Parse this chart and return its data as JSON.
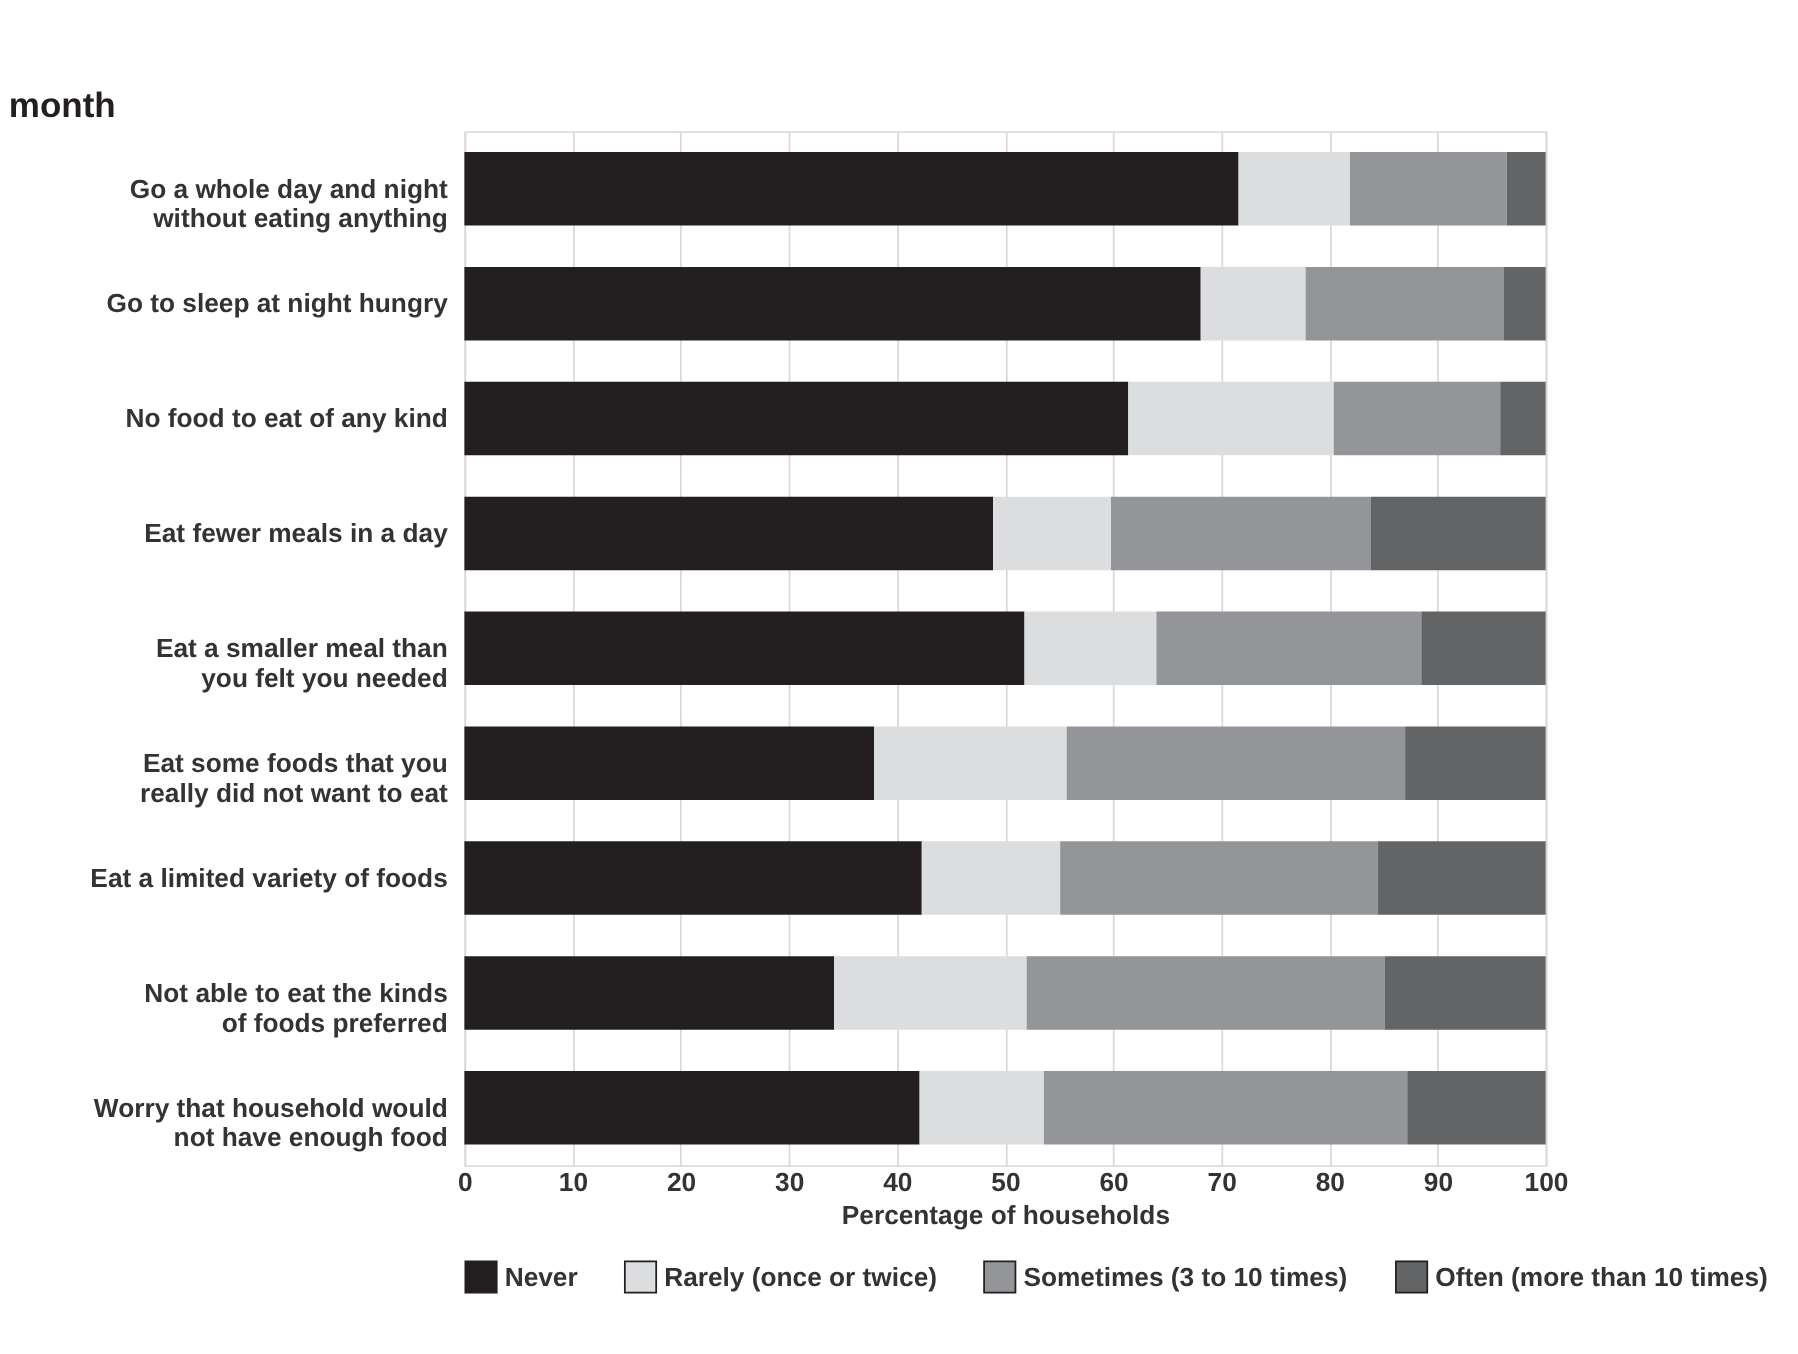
{
  "chart_data": {
    "type": "bar",
    "orientation": "horizontal",
    "stacked": true,
    "title": "month",
    "categories": [
      "Go a whole day and night\nwithout eating anything",
      "Go to sleep at night hungry",
      "No food to eat of any kind",
      "Eat fewer meals in a day",
      "Eat a smaller meal than\nyou felt you needed",
      "Eat some foods that you\nreally did not want to eat",
      "Eat a limited variety of foods",
      "Not able to eat the kinds\nof foods preferred",
      "Worry that household would\nnot have enough food"
    ],
    "series": [
      {
        "name": "Never",
        "color": "#231f20",
        "values": [
          71.6,
          68.1,
          61.4,
          48.9,
          51.8,
          37.9,
          42.3,
          34.2,
          42.1
        ]
      },
      {
        "name": "Rarely (once or twice)",
        "color": "#dcdddf",
        "values": [
          10.3,
          9.7,
          19.0,
          10.9,
          12.2,
          17.8,
          12.8,
          17.8,
          11.5
        ]
      },
      {
        "name": "Sometimes (3 to 10 times)",
        "color": "#939598",
        "values": [
          14.5,
          18.3,
          15.4,
          24.0,
          24.5,
          31.3,
          29.4,
          33.1,
          33.6
        ]
      },
      {
        "name": "Often (more than 10 times)",
        "color": "#636466",
        "values": [
          3.6,
          3.9,
          4.2,
          16.2,
          11.5,
          13.0,
          15.5,
          14.9,
          12.8
        ]
      }
    ],
    "xlabel": "Percentage of households",
    "xlim": [
      0,
      100
    ],
    "xticks": [
      0,
      10,
      20,
      30,
      40,
      50,
      60,
      70,
      80,
      90,
      100
    ],
    "grid": "x",
    "legend": "bottom"
  }
}
